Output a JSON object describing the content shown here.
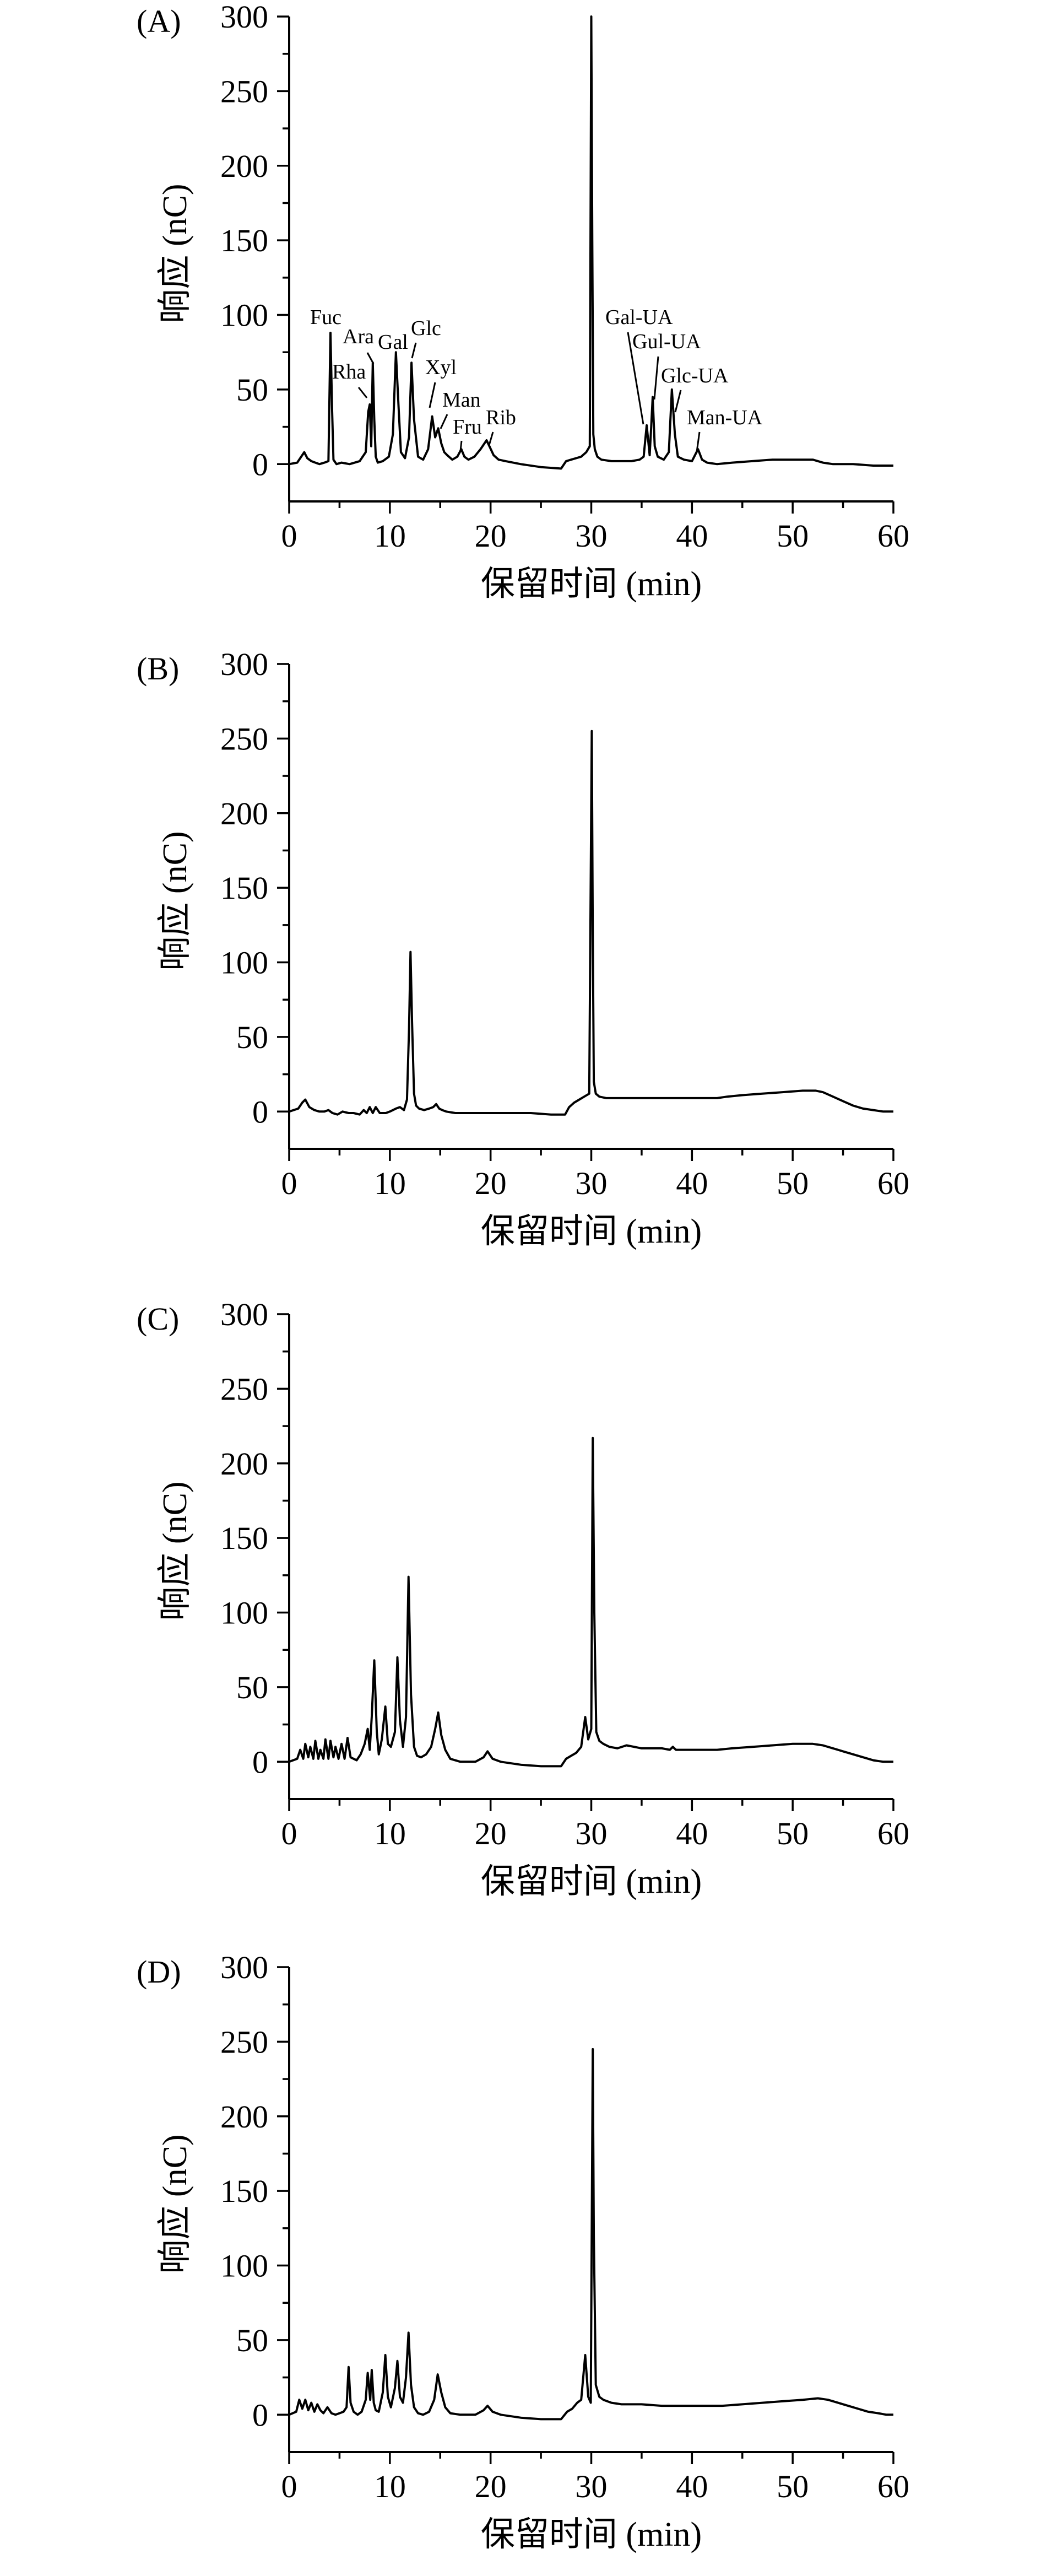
{
  "chart_data": [
    {
      "type": "line",
      "panel_label": "(A)",
      "xlabel": "保留时间 (min)",
      "ylabel": "响应 (nC)",
      "xlim": [
        0,
        60
      ],
      "ylim": [
        -25,
        300
      ],
      "xticks": [
        0,
        10,
        20,
        30,
        40,
        50,
        60
      ],
      "yticks": [
        0,
        50,
        100,
        150,
        200,
        250,
        300
      ],
      "series": [
        {
          "x": [
            0,
            0.8,
            1.2,
            1.5,
            1.8,
            2.2,
            2.6,
            3.0,
            3.5,
            3.9,
            4.1,
            4.25,
            4.4,
            4.7,
            5.2,
            6.0,
            7.0,
            7.6,
            7.85,
            8.0,
            8.15,
            8.3,
            8.45,
            8.6,
            8.8,
            9.3,
            9.9,
            10.3,
            10.6,
            10.85,
            11.1,
            11.5,
            11.9,
            12.15,
            12.4,
            12.8,
            13.3,
            13.8,
            14.2,
            14.5,
            14.8,
            15.1,
            15.4,
            15.7,
            16.2,
            16.7,
            17.1,
            17.4,
            17.8,
            18.4,
            19.0,
            19.6,
            19.95,
            20.3,
            20.8,
            21.5,
            23.0,
            25.0,
            27.0,
            27.5,
            28.0,
            28.5,
            29.0,
            29.5,
            29.85,
            30.0,
            30.1,
            30.2,
            30.35,
            30.6,
            31.0,
            32.0,
            33.0,
            34.0,
            34.8,
            35.2,
            35.5,
            35.8,
            35.95,
            36.1,
            36.3,
            36.6,
            37.2,
            37.7,
            38.0,
            38.3,
            38.6,
            39.2,
            40.0,
            40.6,
            41.0,
            41.5,
            42.5,
            44.0,
            46.0,
            48.0,
            50.0,
            52.0,
            53.0,
            54.0,
            56.0,
            58.0,
            60.0
          ],
          "y": [
            0,
            1,
            5,
            8,
            4,
            2,
            1,
            0,
            1,
            2,
            88,
            40,
            3,
            0,
            1,
            0,
            2,
            8,
            35,
            40,
            12,
            68,
            30,
            5,
            1,
            2,
            5,
            20,
            75,
            40,
            8,
            4,
            18,
            68,
            30,
            5,
            3,
            10,
            32,
            18,
            24,
            14,
            8,
            6,
            3,
            5,
            10,
            5,
            3,
            5,
            10,
            16,
            11,
            6,
            3,
            2,
            0,
            -2,
            -3,
            2,
            3,
            4,
            5,
            8,
            12,
            300,
            150,
            20,
            10,
            5,
            3,
            2,
            2,
            2,
            3,
            5,
            26,
            6,
            25,
            45,
            12,
            5,
            3,
            8,
            50,
            20,
            5,
            3,
            2,
            10,
            3,
            1,
            0,
            1,
            2,
            3,
            3,
            3,
            1,
            0,
            0,
            -1,
            -1
          ]
        }
      ],
      "annotations": [
        {
          "text": "Fuc"
        },
        {
          "text": "Ara"
        },
        {
          "text": "Rha"
        },
        {
          "text": "Gal"
        },
        {
          "text": "Glc"
        },
        {
          "text": "Xyl"
        },
        {
          "text": "Man"
        },
        {
          "text": "Fru"
        },
        {
          "text": "Rib"
        },
        {
          "text": "Gal-UA"
        },
        {
          "text": "Gul-UA"
        },
        {
          "text": "Glc-UA"
        },
        {
          "text": "Man-UA"
        }
      ]
    },
    {
      "type": "line",
      "panel_label": "(B)",
      "xlabel": "保留时间 (min)",
      "ylabel": "响应 (nC)",
      "xlim": [
        0,
        60
      ],
      "ylim": [
        -25,
        300
      ],
      "xticks": [
        0,
        10,
        20,
        30,
        40,
        50,
        60
      ],
      "yticks": [
        0,
        50,
        100,
        150,
        200,
        250,
        300
      ],
      "series": [
        {
          "x": [
            0,
            0.9,
            1.3,
            1.6,
            2.0,
            2.5,
            3.0,
            3.5,
            3.9,
            4.3,
            4.8,
            5.3,
            5.9,
            6.4,
            7.0,
            7.4,
            7.7,
            8.0,
            8.3,
            8.6,
            9.0,
            9.6,
            10.0,
            10.6,
            11.0,
            11.4,
            11.7,
            11.9,
            12.05,
            12.2,
            12.4,
            12.6,
            12.9,
            13.4,
            13.9,
            14.3,
            14.6,
            14.9,
            15.2,
            15.6,
            16.5,
            18.0,
            20.0,
            22.0,
            24.0,
            26.0,
            27.0,
            27.4,
            27.8,
            28.3,
            28.8,
            29.3,
            29.8,
            30.05,
            30.15,
            30.25,
            30.45,
            30.8,
            31.5,
            33.0,
            35.0,
            38.0,
            41.0,
            42.5,
            43.5,
            45.0,
            47.0,
            49.0,
            51.0,
            52.3,
            53.0,
            54.0,
            55.0,
            56.0,
            57.0,
            58.0,
            59.0,
            60.0
          ],
          "y": [
            0,
            2,
            6,
            8,
            3,
            1,
            0,
            0,
            1,
            -1,
            -2,
            0,
            -1,
            -1,
            -2,
            1,
            -1,
            3,
            -1,
            3,
            -1,
            -1,
            0,
            2,
            3,
            1,
            8,
            55,
            107,
            60,
            12,
            4,
            2,
            1,
            2,
            3,
            5,
            2,
            1,
            0,
            -1,
            -1,
            -1,
            -1,
            -1,
            -2,
            -2,
            -2,
            3,
            6,
            8,
            10,
            12,
            255,
            120,
            20,
            12,
            10,
            9,
            9,
            9,
            9,
            9,
            9,
            10,
            11,
            12,
            13,
            14,
            14,
            13,
            10,
            7,
            4,
            2,
            1,
            0,
            0
          ]
        }
      ]
    },
    {
      "type": "line",
      "panel_label": "(C)",
      "xlabel": "保留时间 (min)",
      "ylabel": "响应 (nC)",
      "xlim": [
        0,
        60
      ],
      "ylim": [
        -25,
        300
      ],
      "xticks": [
        0,
        10,
        20,
        30,
        40,
        50,
        60
      ],
      "yticks": [
        0,
        50,
        100,
        150,
        200,
        250,
        300
      ],
      "series": [
        {
          "x": [
            0,
            0.8,
            1.1,
            1.4,
            1.6,
            1.9,
            2.1,
            2.4,
            2.6,
            2.9,
            3.1,
            3.4,
            3.6,
            3.9,
            4.1,
            4.4,
            4.6,
            4.9,
            5.2,
            5.5,
            5.8,
            6.1,
            6.4,
            6.7,
            7.1,
            7.5,
            7.8,
            8.0,
            8.2,
            8.45,
            8.7,
            8.9,
            9.2,
            9.55,
            9.8,
            10.1,
            10.5,
            10.75,
            11.0,
            11.3,
            11.6,
            11.85,
            12.1,
            12.4,
            12.7,
            13.1,
            13.6,
            14.1,
            14.5,
            14.8,
            15.1,
            15.5,
            16.0,
            17.0,
            18.5,
            19.3,
            19.7,
            20.2,
            21.0,
            23.0,
            25.0,
            27.0,
            27.5,
            28.0,
            28.5,
            29.0,
            29.4,
            29.7,
            30.0,
            30.15,
            30.3,
            30.5,
            30.8,
            31.2,
            31.8,
            32.6,
            33.5,
            35.0,
            37.0,
            37.8,
            38.1,
            38.4,
            39.5,
            41.0,
            42.5,
            44.0,
            46.0,
            48.0,
            50.0,
            52.0,
            53.0,
            54.0,
            55.0,
            56.0,
            57.0,
            58.0,
            59.0,
            60.0
          ],
          "y": [
            0,
            2,
            8,
            2,
            12,
            3,
            10,
            2,
            14,
            2,
            8,
            2,
            15,
            2,
            14,
            3,
            10,
            2,
            12,
            2,
            16,
            3,
            2,
            1,
            5,
            12,
            22,
            8,
            30,
            68,
            20,
            5,
            15,
            37,
            12,
            10,
            20,
            70,
            28,
            10,
            30,
            124,
            45,
            10,
            4,
            3,
            5,
            10,
            22,
            33,
            18,
            8,
            2,
            0,
            0,
            3,
            7,
            2,
            0,
            -2,
            -3,
            -3,
            2,
            4,
            6,
            10,
            30,
            15,
            22,
            217,
            100,
            20,
            14,
            12,
            10,
            9,
            11,
            9,
            9,
            8,
            10,
            8,
            8,
            8,
            8,
            9,
            10,
            11,
            12,
            12,
            11,
            9,
            7,
            5,
            3,
            1,
            0,
            0
          ]
        }
      ]
    },
    {
      "type": "line",
      "panel_label": "(D)",
      "xlabel": "保留时间 (min)",
      "ylabel": "响应 (nC)",
      "xlim": [
        0,
        60
      ],
      "ylim": [
        -25,
        300
      ],
      "xticks": [
        0,
        10,
        20,
        30,
        40,
        50,
        60
      ],
      "yticks": [
        0,
        50,
        100,
        150,
        200,
        250,
        300
      ],
      "series": [
        {
          "x": [
            0,
            0.7,
            1.0,
            1.3,
            1.6,
            1.9,
            2.2,
            2.5,
            2.8,
            3.1,
            3.4,
            3.8,
            4.2,
            4.6,
            5.0,
            5.4,
            5.7,
            5.9,
            6.1,
            6.4,
            6.8,
            7.2,
            7.6,
            7.8,
            8.05,
            8.2,
            8.4,
            8.6,
            8.9,
            9.3,
            9.55,
            9.8,
            10.1,
            10.5,
            10.75,
            11.0,
            11.3,
            11.6,
            11.85,
            12.1,
            12.4,
            12.8,
            13.3,
            13.9,
            14.4,
            14.75,
            15.1,
            15.5,
            16.0,
            17.0,
            18.5,
            19.3,
            19.7,
            20.2,
            21.0,
            23.0,
            25.0,
            27.0,
            27.6,
            28.1,
            28.6,
            29.0,
            29.4,
            29.7,
            29.95,
            30.15,
            30.25,
            30.45,
            30.8,
            31.2,
            32.0,
            33.0,
            35.0,
            37.0,
            39.0,
            41.0,
            43.0,
            45.0,
            47.0,
            49.0,
            51.0,
            52.5,
            53.5,
            54.5,
            55.5,
            56.5,
            57.5,
            58.5,
            59.3,
            60.0
          ],
          "y": [
            0,
            2,
            10,
            4,
            10,
            3,
            8,
            2,
            7,
            3,
            1,
            5,
            1,
            0,
            1,
            2,
            5,
            32,
            8,
            2,
            0,
            2,
            10,
            28,
            10,
            30,
            8,
            3,
            2,
            15,
            40,
            12,
            5,
            18,
            36,
            12,
            8,
            25,
            55,
            20,
            5,
            1,
            0,
            2,
            10,
            27,
            15,
            5,
            1,
            0,
            0,
            3,
            6,
            2,
            0,
            -2,
            -3,
            -3,
            2,
            4,
            8,
            10,
            40,
            12,
            8,
            245,
            120,
            20,
            12,
            10,
            8,
            7,
            7,
            6,
            6,
            6,
            6,
            7,
            8,
            9,
            10,
            11,
            10,
            8,
            6,
            4,
            2,
            1,
            0,
            0
          ]
        }
      ]
    }
  ]
}
